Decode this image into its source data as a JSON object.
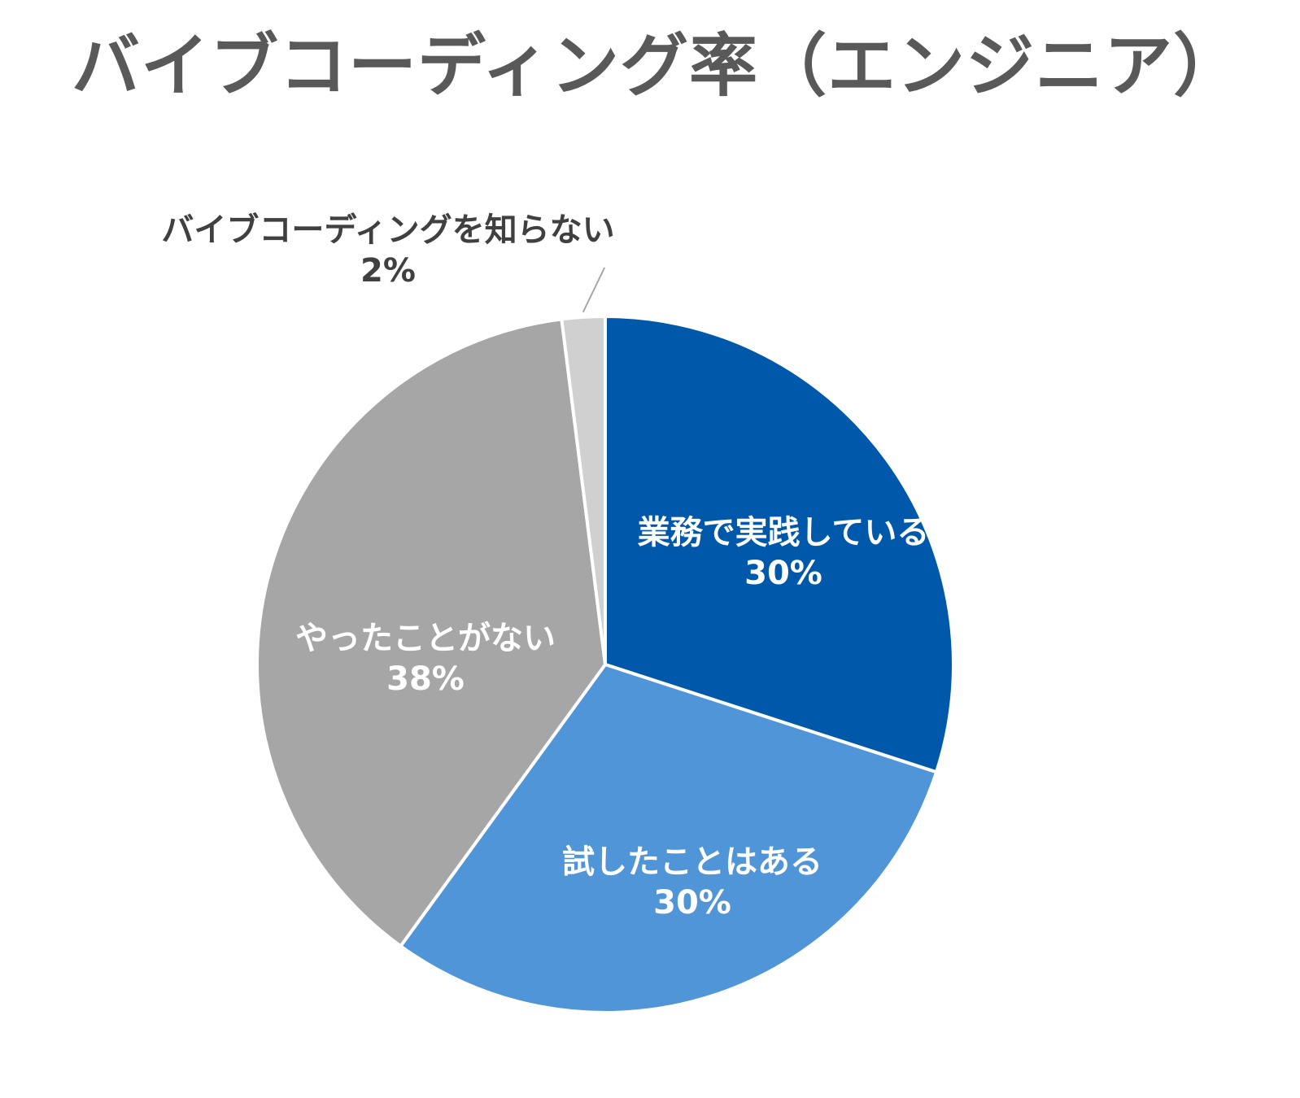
{
  "chart_data": {
    "type": "pie",
    "title": "バイブコーディング率（エンジニア）",
    "start_angle_deg": 0,
    "direction": "clockwise",
    "slices": [
      {
        "label": "業務で実践している",
        "value": 30,
        "value_label": "30%",
        "color": "#0058aa",
        "label_color": "#ffffff"
      },
      {
        "label": "試したことはある",
        "value": 30,
        "value_label": "30%",
        "color": "#5195d9",
        "label_color": "#ffffff"
      },
      {
        "label": "やったことがない",
        "value": 38,
        "value_label": "38%",
        "color": "#a6a6a6",
        "label_color": "#ffffff"
      },
      {
        "label": "バイブコーディングを知らない",
        "value": 2,
        "value_label": "2%",
        "color": "#d0d0d0",
        "label_color": "#404040"
      }
    ]
  }
}
